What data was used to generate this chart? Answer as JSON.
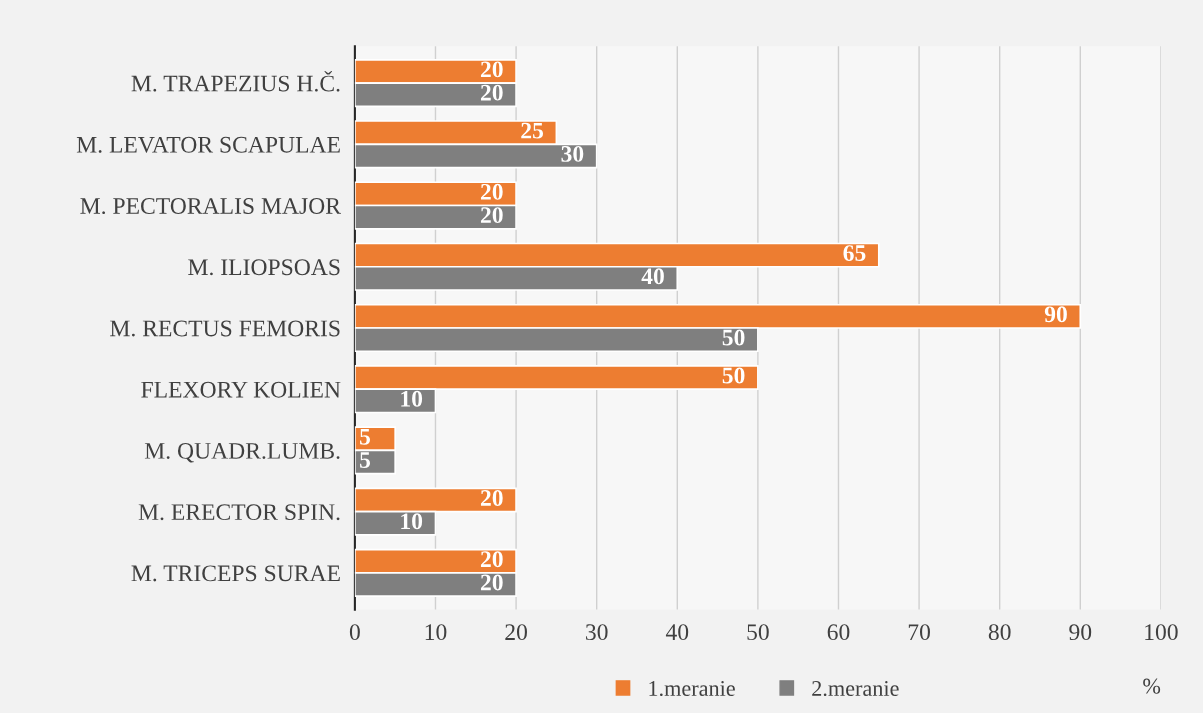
{
  "chart_data": {
    "type": "bar",
    "orientation": "horizontal",
    "categories": [
      "M. TRAPEZIUS H.Č.",
      "M. LEVATOR SCAPULAE",
      "M. PECTORALIS MAJOR",
      "M. ILIOPSOAS",
      "M. RECTUS FEMORIS",
      "FLEXORY KOLIEN",
      "M. QUADR.LUMB.",
      "M. ERECTOR SPIN.",
      "M. TRICEPS SURAE"
    ],
    "series": [
      {
        "name": "1.meranie",
        "color": "#ed7d31",
        "values": [
          20,
          25,
          20,
          65,
          90,
          50,
          5,
          20,
          20
        ]
      },
      {
        "name": "2.meranie",
        "color": "#7f7f7f",
        "values": [
          20,
          30,
          20,
          40,
          50,
          10,
          5,
          10,
          20
        ]
      }
    ],
    "xlim": [
      0,
      100
    ],
    "xticks": [
      0,
      10,
      20,
      30,
      40,
      50,
      60,
      70,
      80,
      90,
      100
    ],
    "grid": "x",
    "legend": "bottom",
    "data_labels": true,
    "annotations": [
      "%"
    ]
  }
}
